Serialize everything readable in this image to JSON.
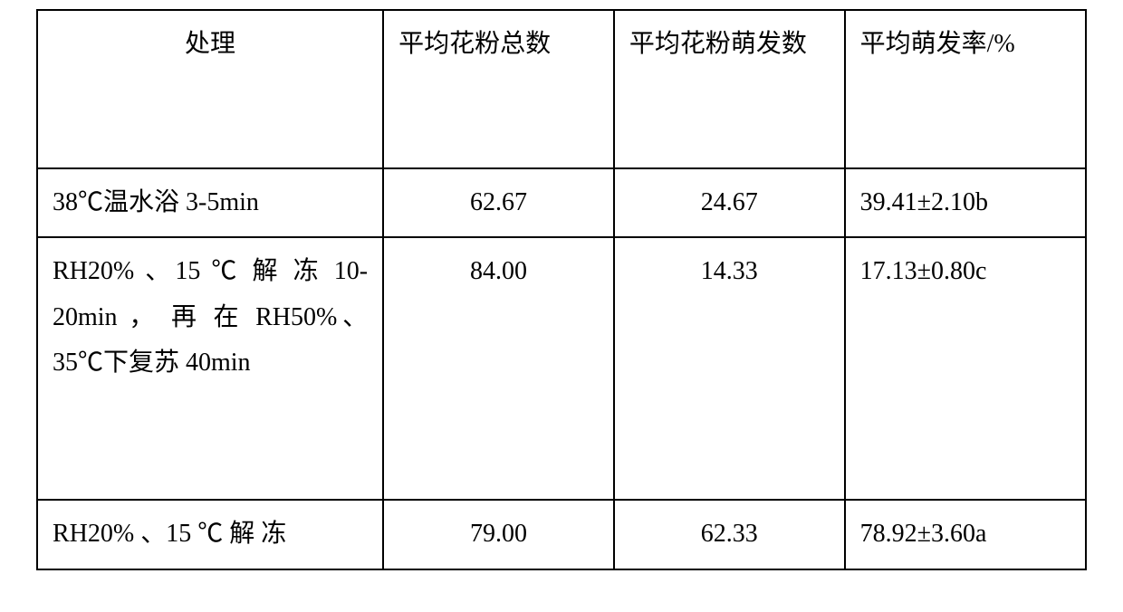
{
  "table": {
    "headers": {
      "col1": "处理",
      "col2": "平均花粉总数",
      "col3": "平均花粉萌发数",
      "col4": "平均萌发率/%"
    },
    "rows": [
      {
        "treatment": "38℃温水浴 3-5min",
        "avg_total": "62.67",
        "avg_germ": "24.67",
        "germ_rate": "39.41±2.10b"
      },
      {
        "treatment": "RH20% 、15 ℃ 解 冻 10-20min ， 再 在 RH50%、35℃下复苏 40min",
        "avg_total": "84.00",
        "avg_germ": "14.33",
        "germ_rate": "17.13±0.80c"
      },
      {
        "treatment": "RH20% 、15 ℃ 解 冻",
        "avg_total": "79.00",
        "avg_germ": "62.33",
        "germ_rate": "78.92±3.60a"
      }
    ],
    "colors": {
      "border": "#000000",
      "background": "#ffffff",
      "text": "#000000"
    },
    "fontsize": 28,
    "border_width": 2
  }
}
